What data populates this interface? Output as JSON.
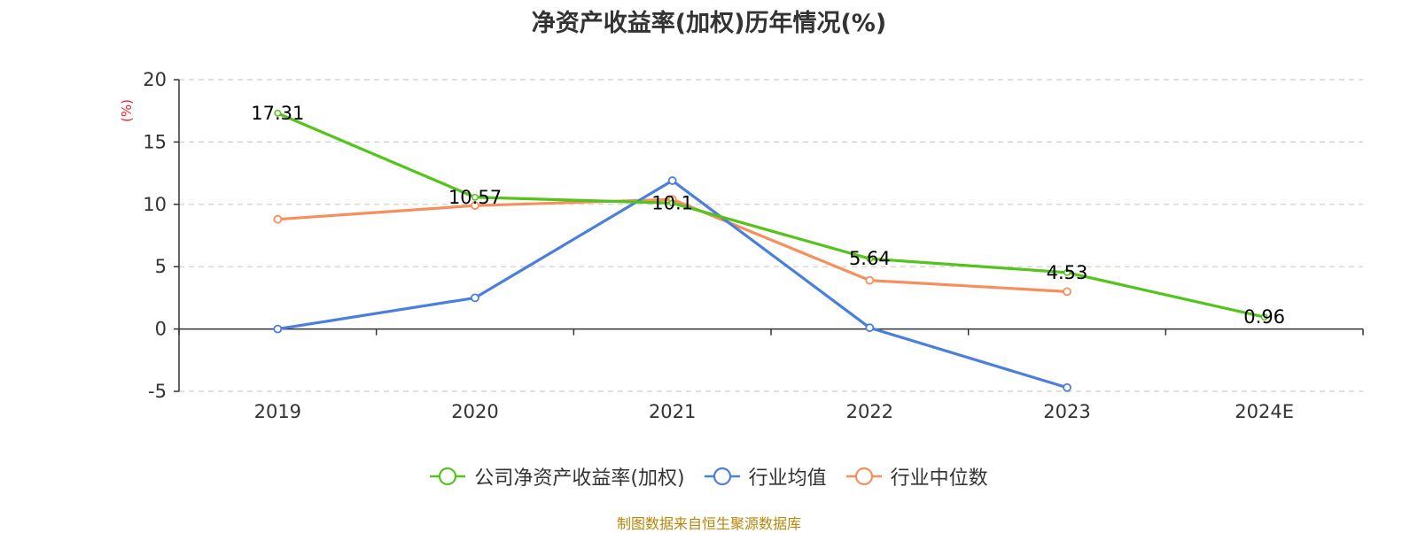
{
  "chart_data": {
    "type": "line",
    "title": "净资产收益率(加权)历年情况(%)",
    "ylabel": "(%)",
    "xlabel": "",
    "categories": [
      "2019",
      "2020",
      "2021",
      "2022",
      "2023",
      "2024E"
    ],
    "yticks": [
      "20",
      "15",
      "10",
      "5",
      "0",
      "-5"
    ],
    "ylim": [
      -5,
      20
    ],
    "ystep": 5,
    "grid": true,
    "legend_position": "bottom",
    "series": [
      {
        "name": "公司净资产收益率(加权)",
        "color": "#52c41a",
        "values": [
          17.31,
          10.57,
          10.1,
          5.64,
          4.53,
          0.96
        ],
        "labels": [
          "17.31",
          "10.57",
          "10.1",
          "5.64",
          "4.53",
          "0.96"
        ]
      },
      {
        "name": "行业均值",
        "color": "#4a7fdb",
        "values": [
          0.0,
          2.5,
          11.9,
          0.1,
          -4.7,
          null
        ]
      },
      {
        "name": "行业中位数",
        "color": "#f78f5c",
        "values": [
          8.8,
          9.9,
          10.4,
          3.9,
          3.0,
          null
        ]
      }
    ]
  },
  "footer": {
    "source": "制图数据来自恒生聚源数据库"
  }
}
